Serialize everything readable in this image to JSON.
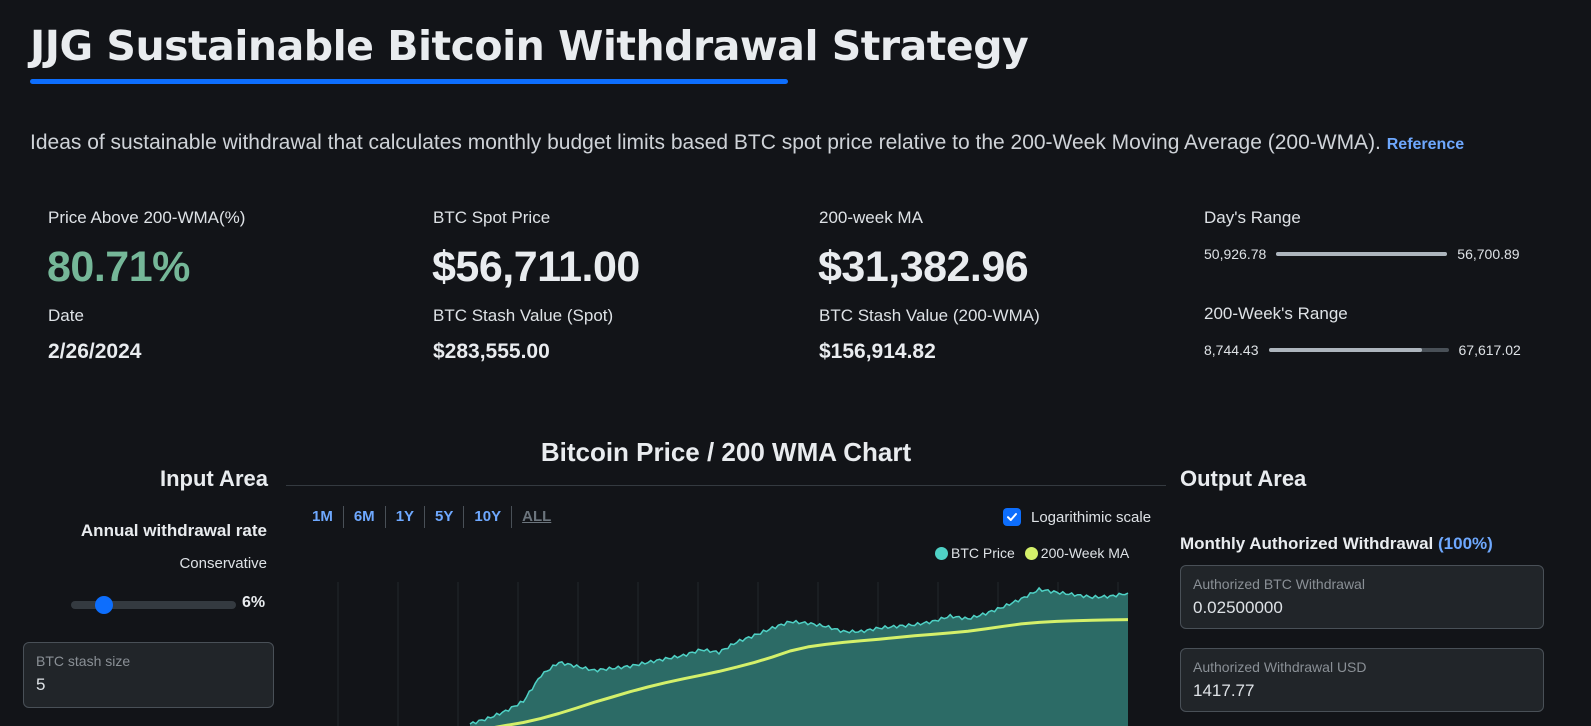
{
  "header": {
    "title": "JJG Sustainable Bitcoin Withdrawal Strategy",
    "intro": "Ideas of sustainable withdrawal that calculates monthly budget limits based BTC spot price relative to the 200-Week Moving Average (200-WMA).",
    "reference_link": "Reference",
    "accent_color": "#0d6efd"
  },
  "stats": {
    "price_above_wma_label": "Price Above 200-WMA(%)",
    "price_above_wma_value": "80.71%",
    "price_above_wma_color": "#75b798",
    "date_label": "Date",
    "date_value": "2/26/2024",
    "spot_label": "BTC Spot Price",
    "spot_value": "$56,711.00",
    "stash_spot_label": "BTC Stash Value (Spot)",
    "stash_spot_value": "$283,555.00",
    "wma_label": "200-week MA",
    "wma_value": "$31,382.96",
    "stash_wma_label": "BTC Stash Value (200-WMA)",
    "stash_wma_value": "$156,914.82"
  },
  "ranges": {
    "day_label": "Day's Range",
    "day_low": "50,926.78",
    "day_high": "56,700.89",
    "day_fill": 1.0,
    "week_label": "200-Week's Range",
    "week_low": "8,744.43",
    "week_high": "67,617.02",
    "week_fill": 0.85
  },
  "input_area": {
    "heading": "Input Area",
    "rate_label": "Annual withdrawal rate",
    "rate_mode": "Conservative",
    "rate_value": "6%",
    "rate_slider_fraction": 0.2,
    "stash_label": "BTC stash size",
    "stash_value": "5"
  },
  "chart": {
    "title": "Bitcoin Price / 200 WMA Chart",
    "timeframes": [
      "1M",
      "6M",
      "1Y",
      "5Y",
      "10Y",
      "ALL"
    ],
    "active_timeframe": "ALL",
    "log_scale_label": "Logarithimic scale",
    "log_scale_checked": true
  },
  "chart_data": {
    "type": "area",
    "title": "Bitcoin Price / 200 WMA Chart",
    "xlabel": "",
    "ylabel": "",
    "log_scale": true,
    "grid": true,
    "legend_position": "top-right",
    "series": [
      {
        "name": "BTC Price",
        "type": "area",
        "color": "#4fd1c5",
        "values": [
          3,
          3.4,
          4,
          5,
          9,
          12,
          11,
          10,
          10.5,
          11,
          12,
          13,
          14,
          16,
          15,
          19,
          22,
          26,
          30,
          29,
          27,
          24,
          24,
          26,
          27,
          28,
          30,
          34,
          32,
          36,
          42,
          50,
          62,
          58,
          55,
          52,
          53,
          57
        ]
      },
      {
        "name": "200-Week MA",
        "type": "line",
        "color": "#d4f06a",
        "values": [
          2.5,
          2.7,
          2.9,
          3.1,
          3.4,
          3.8,
          4.3,
          4.9,
          5.5,
          6.2,
          6.9,
          7.6,
          8.3,
          9.0,
          9.8,
          10.8,
          12.0,
          13.5,
          15.5,
          17.0,
          18.0,
          18.8,
          19.5,
          20.2,
          21.0,
          21.8,
          22.5,
          23.3,
          24.2,
          25.5,
          27.0,
          28.5,
          29.5,
          30.2,
          30.6,
          30.9,
          31.2,
          31.4
        ]
      }
    ]
  },
  "output_area": {
    "heading": "Output Area",
    "monthly_label": "Monthly Authorized Withdrawal",
    "monthly_pct": "(100%)",
    "btc_withdrawal_label": "Authorized BTC Withdrawal",
    "btc_withdrawal_value": "0.02500000",
    "usd_withdrawal_label": "Authorized Withdrawal USD",
    "usd_withdrawal_value": "1417.77"
  }
}
